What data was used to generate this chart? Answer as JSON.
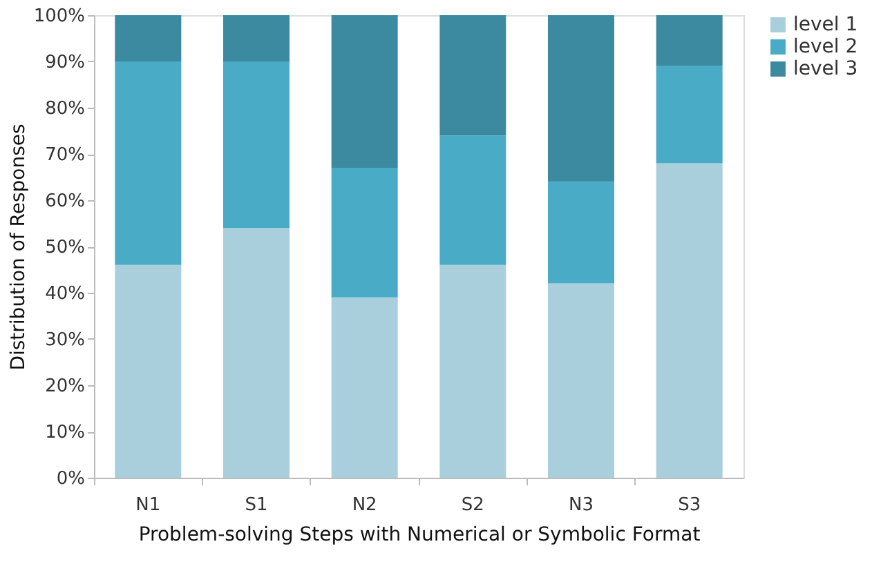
{
  "chart_data": {
    "type": "bar",
    "stacked": true,
    "xlabel": "Problem-solving Steps with Numerical or Symbolic Format",
    "ylabel": "Distribution of Responses",
    "categories": [
      "N1",
      "S1",
      "N2",
      "S2",
      "N3",
      "S3"
    ],
    "series": [
      {
        "name": "level 1",
        "color": "#a9cfdd",
        "values": [
          46,
          54,
          39,
          46,
          42,
          68
        ]
      },
      {
        "name": "level 2",
        "color": "#4aabc6",
        "values": [
          44,
          36,
          28,
          28,
          22,
          21
        ]
      },
      {
        "name": "level 3",
        "color": "#3b8aa0",
        "values": [
          10,
          10,
          33,
          26,
          36,
          11
        ]
      }
    ],
    "ylim": [
      0,
      100
    ],
    "yticks": [
      {
        "value": 0,
        "label": "0%"
      },
      {
        "value": 10,
        "label": "10%"
      },
      {
        "value": 20,
        "label": "20%"
      },
      {
        "value": 30,
        "label": "30%"
      },
      {
        "value": 40,
        "label": "40%"
      },
      {
        "value": 50,
        "label": "50%"
      },
      {
        "value": 60,
        "label": "60%"
      },
      {
        "value": 70,
        "label": "70%"
      },
      {
        "value": 80,
        "label": "80%"
      },
      {
        "value": 90,
        "label": "90%"
      },
      {
        "value": 100,
        "label": "100%"
      }
    ],
    "grid": false,
    "legend": "right"
  }
}
